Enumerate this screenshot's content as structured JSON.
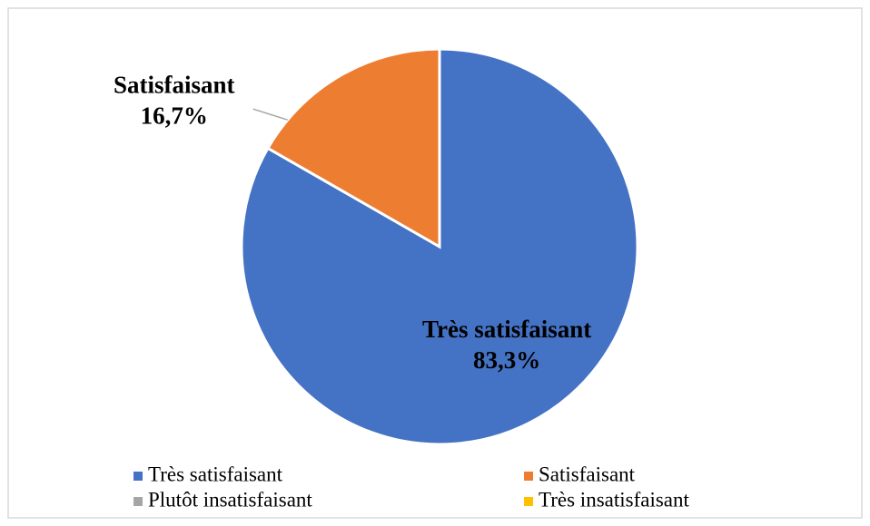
{
  "chart_data": {
    "type": "pie",
    "categories": [
      "Très satisfaisant",
      "Satisfaisant",
      "Plutôt insatisfaisant",
      "Très insatisfaisant"
    ],
    "values": [
      83.3,
      16.7,
      0,
      0
    ],
    "value_labels": [
      "83,3%",
      "16,7%",
      null,
      null
    ],
    "colors": [
      "#4472c4",
      "#ed7d31",
      "#a5a5a5",
      "#ffc000"
    ],
    "legend": "bottom"
  }
}
